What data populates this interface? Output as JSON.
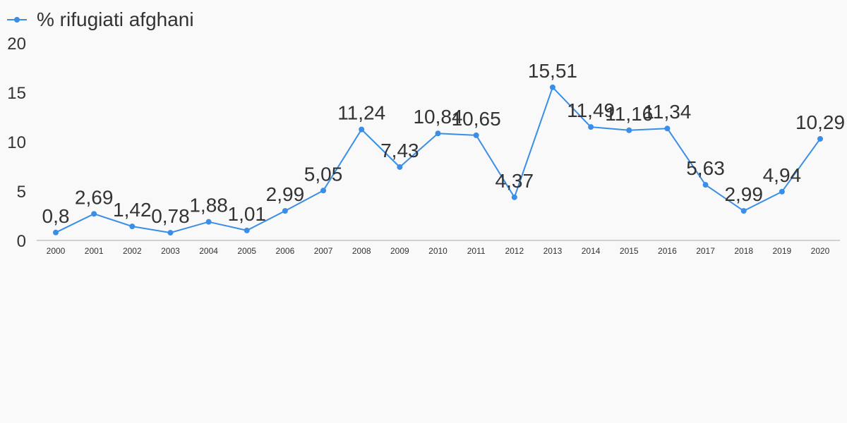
{
  "chart_data": {
    "type": "line",
    "title": "",
    "xlabel": "",
    "ylabel": "",
    "legend": "top-left",
    "grid": false,
    "ylim": [
      0,
      20
    ],
    "y_ticks": [
      "0",
      "5",
      "10",
      "15",
      "20"
    ],
    "categories": [
      "2000",
      "2001",
      "2002",
      "2003",
      "2004",
      "2005",
      "2006",
      "2007",
      "2008",
      "2009",
      "2010",
      "2011",
      "2012",
      "2013",
      "2014",
      "2015",
      "2016",
      "2017",
      "2018",
      "2019",
      "2020"
    ],
    "series": [
      {
        "name": "% rifugiati afghani",
        "color": "#3a8ee6",
        "values": [
          0.8,
          2.69,
          1.42,
          0.78,
          1.88,
          1.01,
          2.99,
          5.05,
          11.24,
          7.43,
          10.84,
          10.65,
          4.37,
          15.51,
          11.49,
          11.16,
          11.34,
          5.63,
          2.99,
          4.94,
          10.29
        ],
        "labels": [
          "0,8",
          "2,69",
          "1,42",
          "0,78",
          "1,88",
          "1,01",
          "2,99",
          "5,05",
          "11,24",
          "7,43",
          "10,84",
          "10,65",
          "4,37",
          "15,51",
          "11,49",
          "11,16",
          "11,34",
          "5,63",
          "2,99",
          "4,94",
          "10,29"
        ]
      }
    ]
  }
}
